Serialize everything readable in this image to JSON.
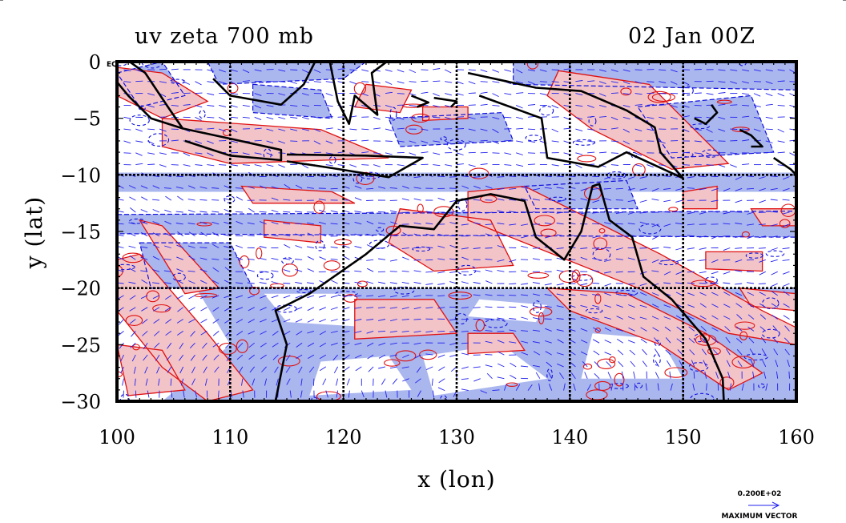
{
  "header": {
    "title_left": "uv zeta 700 mb",
    "title_right": "02 Jan 00Z",
    "corner_tag": "EQ"
  },
  "axes": {
    "xlabel": "x (lon)",
    "ylabel": "y (lat)",
    "x_ticks": [
      "100",
      "110",
      "120",
      "130",
      "140",
      "150",
      "160"
    ],
    "y_ticks": [
      "0",
      "−5",
      "−10",
      "−15",
      "−20",
      "−25",
      "−30"
    ],
    "xlim": [
      100,
      160
    ],
    "ylim": [
      -30,
      0
    ]
  },
  "legend": {
    "max_vector_value": "0.200E+02",
    "max_vector_label": "MAXIMUM VECTOR"
  },
  "colors": {
    "positive_fill": "#f2c4c8",
    "negative_fill": "#aab6ee",
    "positive_contour": "#e01010",
    "negative_contour": "#1010e0",
    "vectors": "#2020ee",
    "coast": "#000000"
  },
  "chart_data": {
    "type": "heatmap",
    "title": "uv zeta 700 mb",
    "xlabel": "x (lon)",
    "ylabel": "y (lat)",
    "xlim": [
      100,
      160
    ],
    "ylim": [
      -30,
      0
    ],
    "x_ticks": [
      100,
      110,
      120,
      130,
      140,
      150,
      160
    ],
    "y_ticks": [
      0,
      -5,
      -10,
      -15,
      -20,
      -25,
      -30
    ],
    "grid_lon": [
      110,
      120,
      130,
      140,
      150
    ],
    "grid_lat": [
      -10,
      -20
    ],
    "fields": [
      "vorticity (shaded & contoured)",
      "wind vectors"
    ]
  }
}
